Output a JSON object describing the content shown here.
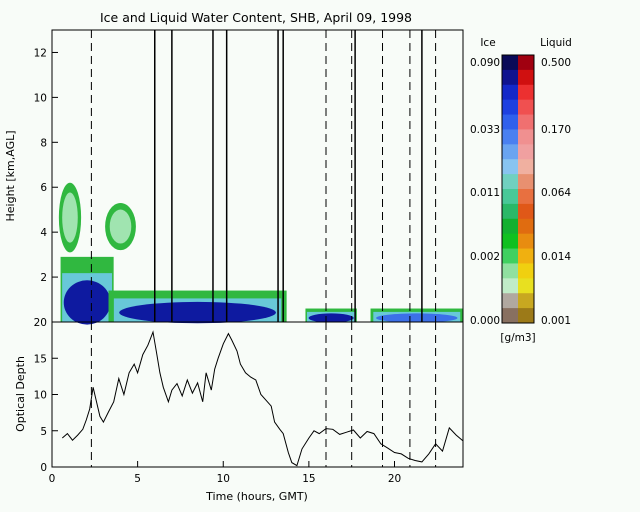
{
  "chart_data": [
    {
      "type": "heatmap",
      "title": "Ice and Liquid Water Content, SHB, April 09, 1998",
      "ylabel": "Height [km,AGL]",
      "xlim": [
        0,
        24
      ],
      "ylim": [
        0,
        13
      ],
      "x_ticks": [
        0,
        5,
        10,
        15,
        20
      ],
      "y_ticks": [
        2,
        4,
        6,
        8,
        10,
        12
      ],
      "y_tick_labels": [
        "2",
        "4",
        "6",
        "8",
        "10",
        "12"
      ],
      "dashed_x_lines": [
        2.3,
        16.0,
        17.5,
        19.3,
        20.9,
        22.4
      ],
      "solid_x_lines": [
        6.0,
        7.0,
        9.4,
        10.2,
        13.2,
        13.5,
        17.7,
        21.6
      ],
      "regions": [
        {
          "name": "upper ice cloud",
          "x": [
            0.4,
            1.7
          ],
          "y": [
            3.1,
            6.2
          ],
          "phase": "ice",
          "core": "light"
        },
        {
          "name": "small ice cloud",
          "x": [
            3.1,
            4.9
          ],
          "y": [
            3.2,
            5.3
          ],
          "phase": "ice",
          "core": "light"
        },
        {
          "name": "low ice layer A",
          "x": [
            0.5,
            3.6
          ],
          "y": [
            0,
            2.9
          ],
          "phase": "ice",
          "core": "dark"
        },
        {
          "name": "low ice layer B",
          "x": [
            3.3,
            13.7
          ],
          "y": [
            0,
            1.4
          ],
          "phase": "ice",
          "core": "dark"
        },
        {
          "name": "low ice layer C",
          "x": [
            14.8,
            17.8
          ],
          "y": [
            0,
            0.6
          ],
          "phase": "ice",
          "core": "dark"
        },
        {
          "name": "low ice layer D",
          "x": [
            18.6,
            24
          ],
          "y": [
            0,
            0.6
          ],
          "phase": "ice",
          "core": "light"
        }
      ]
    },
    {
      "type": "line",
      "xlabel": "Time (hours, GMT)",
      "ylabel": "Optical Depth",
      "xlim": [
        0,
        24
      ],
      "ylim": [
        0,
        20
      ],
      "x_ticks": [
        0,
        5,
        10,
        15,
        20
      ],
      "y_ticks": [
        0,
        5,
        10,
        15,
        20
      ],
      "y_tick_labels": [
        "0",
        "5",
        "10",
        "15",
        "20"
      ],
      "dashed_x_lines": [
        2.3,
        16.0,
        17.5,
        19.3,
        20.9,
        22.4
      ],
      "series": [
        {
          "x": [
            0.6,
            0.9,
            1.2,
            1.5,
            1.8,
            2.0,
            2.2,
            2.4,
            2.6,
            2.8,
            3.0,
            3.3,
            3.6,
            3.9,
            4.2,
            4.5,
            4.8,
            5.0,
            5.3,
            5.6,
            5.9,
            6.1,
            6.3,
            6.5,
            6.8,
            7.0,
            7.3,
            7.6,
            7.9,
            8.2,
            8.5,
            8.8,
            9.0,
            9.3,
            9.5,
            9.7,
            10.0,
            10.3,
            10.5,
            10.8,
            11.0,
            11.3,
            11.6,
            11.9,
            12.2,
            12.5,
            12.8,
            13.0,
            13.3,
            13.5,
            13.8,
            14.0,
            14.3,
            14.6,
            15.0,
            15.3,
            15.6,
            16.0,
            16.4,
            16.8,
            17.2,
            17.6,
            18.0,
            18.4,
            18.8,
            19.2,
            19.6,
            20.0,
            20.4,
            20.8,
            21.2,
            21.6,
            22.0,
            22.4,
            22.8,
            23.2,
            23.6,
            24.0
          ],
          "values": [
            4.0,
            4.6,
            3.7,
            4.4,
            5.2,
            6.5,
            8.0,
            11.0,
            9.0,
            7.0,
            6.2,
            7.6,
            9.0,
            12.2,
            10.0,
            13.0,
            14.2,
            13.0,
            15.5,
            16.8,
            18.6,
            15.8,
            13.0,
            11.0,
            9.0,
            10.6,
            11.5,
            9.8,
            12.0,
            10.2,
            11.6,
            9.0,
            13.0,
            10.6,
            13.5,
            15.0,
            17.0,
            18.4,
            17.5,
            16.0,
            14.2,
            13.0,
            12.4,
            12.0,
            10.0,
            9.2,
            8.4,
            6.2,
            5.2,
            4.6,
            2.0,
            0.6,
            0.2,
            2.5,
            4.0,
            5.0,
            4.6,
            5.3,
            5.2,
            4.5,
            4.8,
            5.1,
            4.0,
            4.9,
            4.6,
            3.2,
            2.6,
            2.0,
            1.8,
            1.2,
            0.9,
            0.7,
            1.8,
            3.2,
            2.2,
            5.4,
            4.4,
            3.6
          ]
        }
      ]
    }
  ],
  "colorbar": {
    "left_header": "Ice",
    "right_header": "Liquid",
    "ice_labels": [
      "0.090",
      "0.033",
      "0.011",
      "0.002",
      "0.000"
    ],
    "liquid_labels": [
      "0.500",
      "0.170",
      "0.064",
      "0.014",
      "0.001"
    ],
    "unit": "[g/m3]",
    "ice_colors": [
      "#0a0a58",
      "#0f138f",
      "#1428c8",
      "#1e40e0",
      "#3060ec",
      "#4a80f0",
      "#6aa4f0",
      "#88c4f0",
      "#70d0c0",
      "#48c898",
      "#2ab868",
      "#12b030",
      "#10c020",
      "#40d060",
      "#90e0a0",
      "#c0ecc8",
      "#b0a8a0",
      "#887060"
    ],
    "liquid_colors": [
      "#a00010",
      "#d01010",
      "#ec3030",
      "#f05050",
      "#f07070",
      "#f09090",
      "#f0a0a0",
      "#f0b0a0",
      "#e89070",
      "#e87040",
      "#e05818",
      "#e06c10",
      "#e88c10",
      "#f0b010",
      "#f0d010",
      "#e8e020",
      "#c8a820",
      "#9c7a18"
    ]
  }
}
